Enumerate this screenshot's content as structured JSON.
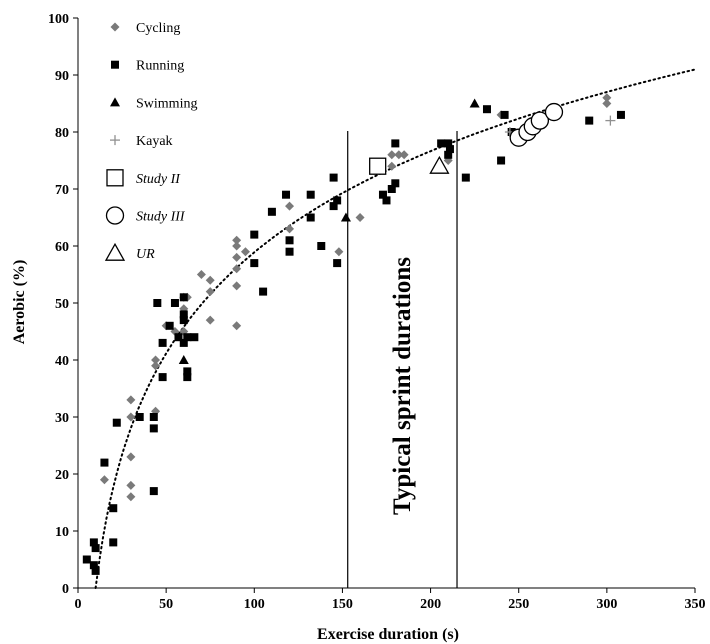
{
  "chart_data": {
    "type": "scatter",
    "title": "",
    "xlabel": "Exercise duration (s)",
    "ylabel": "Aerobic (%)",
    "xlim": [
      0,
      350
    ],
    "ylim": [
      0,
      100
    ],
    "xticks": [
      0,
      50,
      100,
      150,
      200,
      250,
      300,
      350
    ],
    "yticks": [
      0,
      10,
      20,
      30,
      40,
      50,
      60,
      70,
      80,
      90,
      100
    ],
    "grid": false,
    "legend_position": "top-left",
    "annotation": "Typical sprint durations",
    "vlines": [
      153,
      215
    ],
    "series": [
      {
        "name": "Cycling",
        "marker": "diamond",
        "color": "#7a7a7a",
        "points": [
          [
            15,
            19
          ],
          [
            30,
            33
          ],
          [
            30,
            30
          ],
          [
            30,
            23
          ],
          [
            30,
            18
          ],
          [
            30,
            16
          ],
          [
            44,
            39
          ],
          [
            44,
            40
          ],
          [
            44,
            31
          ],
          [
            50,
            46
          ],
          [
            55,
            45
          ],
          [
            60,
            51
          ],
          [
            62,
            51
          ],
          [
            60,
            49
          ],
          [
            60,
            45
          ],
          [
            70,
            55
          ],
          [
            75,
            54
          ],
          [
            75,
            52
          ],
          [
            75,
            47
          ],
          [
            90,
            61
          ],
          [
            90,
            60
          ],
          [
            90,
            58
          ],
          [
            90,
            56
          ],
          [
            90,
            53
          ],
          [
            90,
            46
          ],
          [
            95,
            59
          ],
          [
            120,
            67
          ],
          [
            120,
            63
          ],
          [
            148,
            59
          ],
          [
            160,
            65
          ],
          [
            178,
            74
          ],
          [
            178,
            76
          ],
          [
            182,
            76
          ],
          [
            185,
            76
          ],
          [
            210,
            75
          ],
          [
            240,
            83
          ],
          [
            300,
            86
          ],
          [
            300,
            85
          ]
        ]
      },
      {
        "name": "Running",
        "marker": "square",
        "color": "#000000",
        "points": [
          [
            5,
            5
          ],
          [
            9,
            8
          ],
          [
            10,
            7
          ],
          [
            9,
            4
          ],
          [
            10,
            3
          ],
          [
            15,
            22
          ],
          [
            20,
            14
          ],
          [
            20,
            8
          ],
          [
            22,
            29
          ],
          [
            35,
            30
          ],
          [
            43,
            30
          ],
          [
            43,
            28
          ],
          [
            43,
            17
          ],
          [
            45,
            50
          ],
          [
            48,
            43
          ],
          [
            48,
            37
          ],
          [
            52,
            46
          ],
          [
            55,
            50
          ],
          [
            57,
            44
          ],
          [
            60,
            51
          ],
          [
            60,
            48
          ],
          [
            60,
            47
          ],
          [
            60,
            43
          ],
          [
            62,
            44
          ],
          [
            62,
            38
          ],
          [
            62,
            37
          ],
          [
            66,
            44
          ],
          [
            100,
            62
          ],
          [
            100,
            57
          ],
          [
            105,
            52
          ],
          [
            110,
            66
          ],
          [
            118,
            69
          ],
          [
            120,
            61
          ],
          [
            120,
            59
          ],
          [
            132,
            69
          ],
          [
            132,
            65
          ],
          [
            138,
            60
          ],
          [
            145,
            72
          ],
          [
            145,
            67
          ],
          [
            147,
            68
          ],
          [
            147,
            57
          ],
          [
            173,
            69
          ],
          [
            175,
            68
          ],
          [
            178,
            70
          ],
          [
            180,
            78
          ],
          [
            180,
            71
          ],
          [
            206,
            78
          ],
          [
            210,
            78
          ],
          [
            210,
            76
          ],
          [
            211,
            77
          ],
          [
            220,
            72
          ],
          [
            232,
            84
          ],
          [
            240,
            75
          ],
          [
            242,
            83
          ],
          [
            246,
            80
          ],
          [
            290,
            82
          ],
          [
            308,
            83
          ]
        ]
      },
      {
        "name": "Swimming",
        "marker": "triangle",
        "color": "#000000",
        "points": [
          [
            60,
            40
          ],
          [
            152,
            65
          ],
          [
            225,
            85
          ]
        ]
      },
      {
        "name": "Kayak",
        "marker": "plus",
        "color": "#909090",
        "points": [
          [
            245,
            80
          ],
          [
            302,
            82
          ]
        ]
      },
      {
        "name": "Study II",
        "marker": "open-square",
        "color": "#000000",
        "points": [
          [
            170,
            74
          ]
        ]
      },
      {
        "name": "Study III",
        "marker": "open-circle",
        "color": "#000000",
        "points": [
          [
            250,
            79
          ],
          [
            255,
            80
          ],
          [
            258,
            81
          ],
          [
            262,
            82
          ],
          [
            270,
            83.5
          ]
        ]
      },
      {
        "name": "UR",
        "marker": "open-triangle",
        "color": "#000000",
        "points": [
          [
            205,
            74
          ]
        ]
      }
    ],
    "trendline": {
      "style": "dotted",
      "form": "logarithmic",
      "x_range": [
        10,
        350
      ],
      "points": [
        [
          10,
          0
        ],
        [
          20,
          17
        ],
        [
          30,
          27
        ],
        [
          50,
          40
        ],
        [
          75,
          50
        ],
        [
          100,
          57
        ],
        [
          150,
          67
        ],
        [
          200,
          75
        ],
        [
          250,
          80
        ],
        [
          300,
          85
        ],
        [
          350,
          89.5
        ]
      ]
    }
  }
}
